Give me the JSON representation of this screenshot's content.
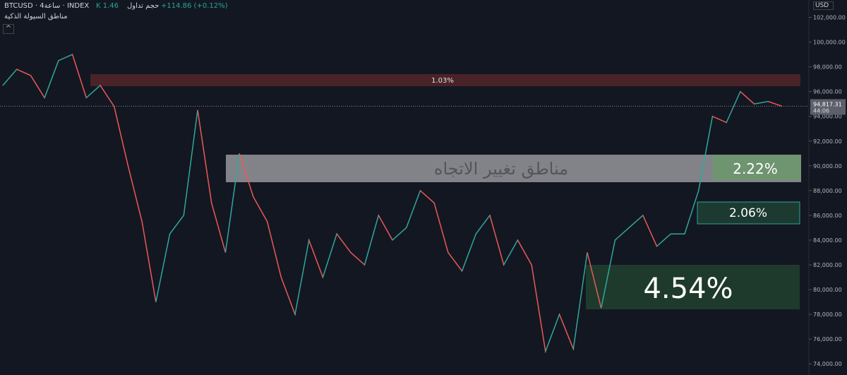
{
  "header": {
    "symbol": "BTCUSD · 4ساعة · INDEX",
    "volume_label": "حجم تداول",
    "volume": "K 1.46",
    "change": "+114.86 (+0.12%)",
    "indicator": "مناطق السيولة الذكية"
  },
  "currency": "USD",
  "chart": {
    "ylim": [
      73100,
      103400
    ],
    "yticks": [
      {
        "value": 74000,
        "label": "74,000.00"
      },
      {
        "value": 76000,
        "label": "76,000.00"
      },
      {
        "value": 78000,
        "label": "78,000.00"
      },
      {
        "value": 80000,
        "label": "80,000.00"
      },
      {
        "value": 82000,
        "label": "82,000.00"
      },
      {
        "value": 84000,
        "label": "84,000.00"
      },
      {
        "value": 86000,
        "label": "86,000.00"
      },
      {
        "value": 88000,
        "label": "88,000.00"
      },
      {
        "value": 90000,
        "label": "90,000.00"
      },
      {
        "value": 92000,
        "label": "92,000.00"
      },
      {
        "value": 94000,
        "label": "94,000.00"
      },
      {
        "value": 96000,
        "label": "96,000.00"
      },
      {
        "value": 98000,
        "label": "98,000.00"
      },
      {
        "value": 100000,
        "label": "100,000.00"
      },
      {
        "value": 102000,
        "label": "102,000.00"
      }
    ],
    "closes": [
      96500,
      97800,
      97300,
      95500,
      98500,
      99000,
      95500,
      96500,
      94800,
      90000,
      85500,
      79000,
      84500,
      86000,
      94500,
      87000,
      83000,
      91000,
      87500,
      85500,
      81000,
      78000,
      84000,
      81000,
      84500,
      83000,
      82000,
      86000,
      84000,
      85000,
      88000,
      87000,
      83000,
      81500,
      84500,
      86000,
      82000,
      84000,
      82000,
      75000,
      78000,
      75200,
      83000,
      78500,
      84000,
      85000,
      86000,
      83500,
      84500,
      84500,
      88000,
      94000,
      93500,
      96000,
      95000,
      95200,
      94817
    ],
    "last_price": {
      "value": 94817.31,
      "label": "94,817.31"
    },
    "countdown": "44:06"
  },
  "zones": {
    "top": "1.03%",
    "reversal": "مناطق تغيير الاتجاه",
    "z1": "2.22%",
    "z2": "2.06%",
    "z3": "4.54%"
  }
}
